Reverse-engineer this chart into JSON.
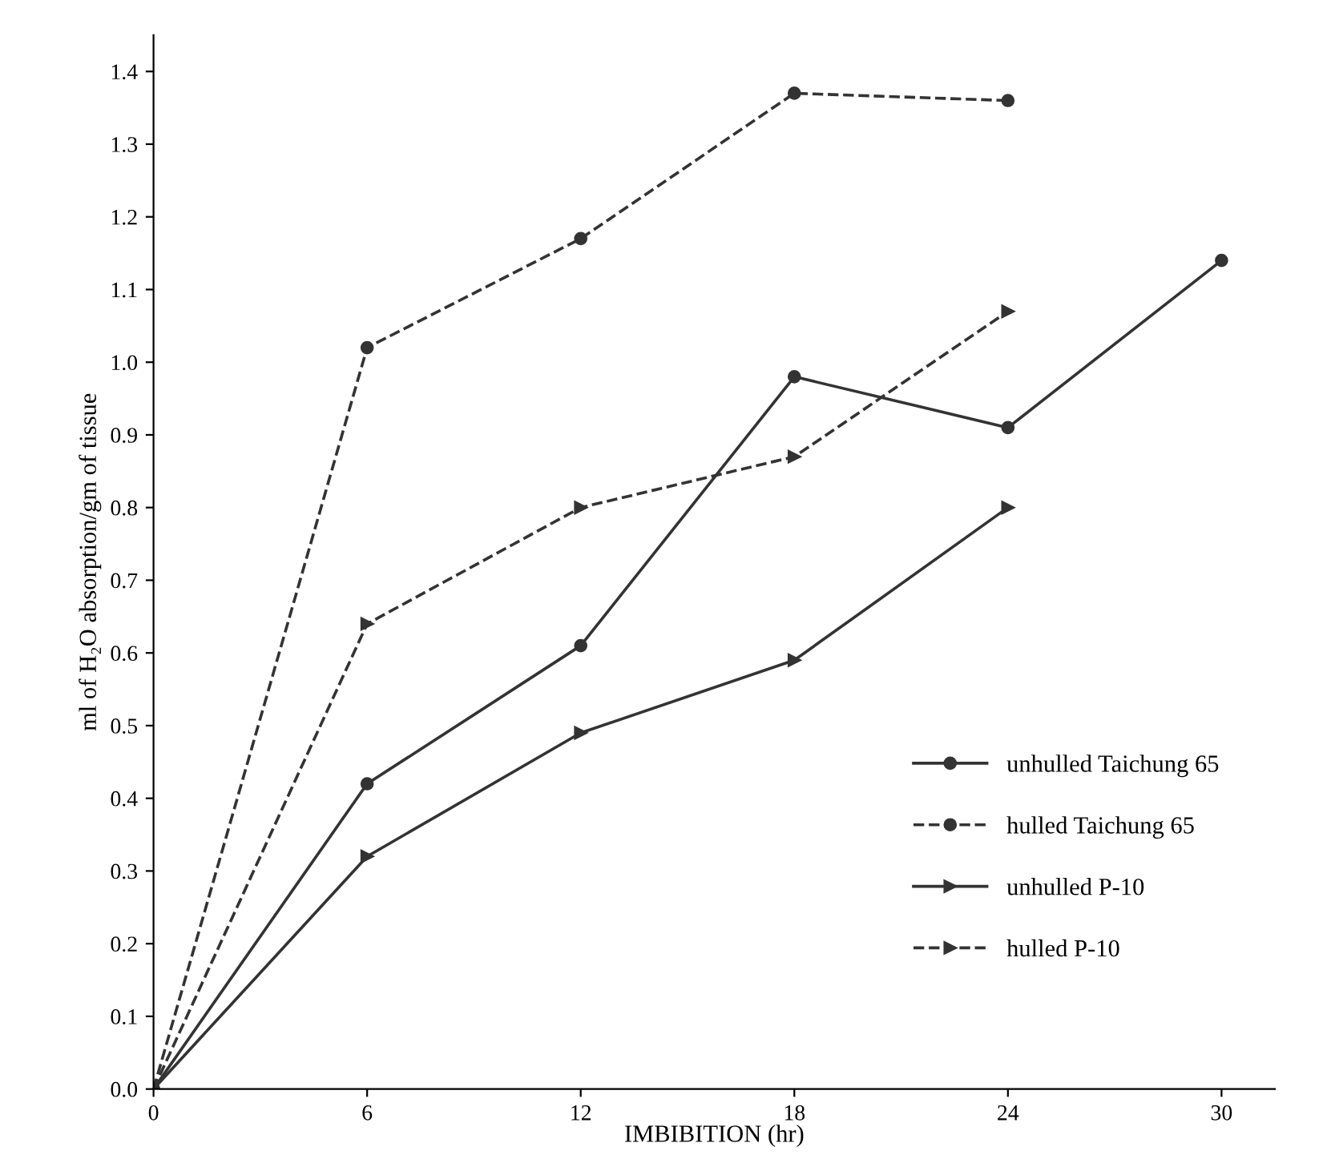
{
  "chart_data": {
    "type": "line",
    "xlabel": "IMBIBITION (hr)",
    "ylabel": "ml of H₂O absorption/gm of tissue",
    "xlim": [
      0,
      31.5
    ],
    "xticks": [
      0,
      6,
      12,
      18,
      24,
      30
    ],
    "ylim": [
      0,
      1.45
    ],
    "yticks": [
      {
        "value": 0,
        "label": "0.0"
      },
      0.1,
      0.2,
      0.3,
      0.4,
      0.5,
      0.6,
      0.7,
      0.8,
      0.9,
      {
        "value": 1,
        "label": "1.0"
      },
      1.1,
      1.2,
      1.3,
      1.4
    ],
    "grid": false,
    "legend": "bottom right",
    "series": [
      {
        "name": "unhulled Taichung 65",
        "color": "#333333",
        "marker": "circle",
        "line_style": "solid",
        "x": [
          0,
          6,
          12,
          18,
          24,
          30
        ],
        "values": [
          0,
          0.42,
          0.61,
          0.98,
          0.91,
          1.14
        ]
      },
      {
        "name": "hulled Taichung 65",
        "color": "#333333",
        "marker": "circle",
        "line_style": "dashed",
        "x": [
          0,
          6,
          12,
          18,
          24
        ],
        "values": [
          0,
          1.02,
          1.17,
          1.37,
          1.36
        ]
      },
      {
        "name": "unhulled P-10",
        "color": "#333333",
        "marker": "triangle",
        "line_style": "solid",
        "x": [
          0,
          6,
          12,
          18,
          24
        ],
        "values": [
          0,
          0.32,
          0.49,
          0.59,
          0.8
        ]
      },
      {
        "name": "hulled P-10",
        "color": "#333333",
        "marker": "triangle",
        "line_style": "dashed",
        "x": [
          0,
          6,
          12,
          18,
          24
        ],
        "values": [
          0,
          0.64,
          0.8,
          0.87,
          1.07
        ]
      }
    ]
  }
}
